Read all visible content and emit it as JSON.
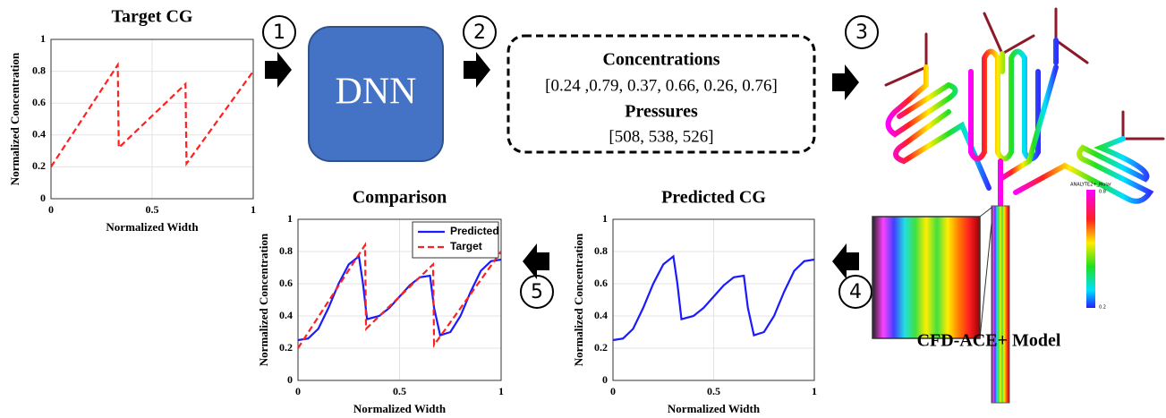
{
  "steps": [
    "1",
    "2",
    "3",
    "4",
    "5"
  ],
  "dnn": "DNN",
  "parameters": {
    "concentrations_title": "Concentrations",
    "concentrations": "[0.24 ,0.79, 0.37, 0.66, 0.26, 0.76]",
    "pressures_title": "Pressures",
    "pressures": "[508, 538, 526]"
  },
  "model_label": "CFD-ACE+ Model",
  "colorbar": {
    "title": "ANALYTE2+_Molar",
    "top": "0.8",
    "bottom": "0.2"
  },
  "chart_data": [
    {
      "type": "line",
      "title": "Target CG",
      "x_label": "Normalized Width",
      "y_label": "Normalized Concentration",
      "xlim": [
        0,
        1
      ],
      "xticks": [
        0,
        0.5,
        1
      ],
      "ylim": [
        0,
        1
      ],
      "yticks": [
        0,
        0.2,
        0.4,
        0.6,
        0.8,
        1
      ],
      "grid": true,
      "series": [
        {
          "color": "#ff2020",
          "dash": true,
          "x": [
            0,
            0.33,
            0.335,
            0.665,
            0.67,
            1
          ],
          "values": [
            0.2,
            0.84,
            0.32,
            0.72,
            0.22,
            0.8
          ]
        }
      ]
    },
    {
      "type": "line",
      "title": "Comparison",
      "x_label": "Normalized Width",
      "y_label": "Normalized Concentration",
      "xlim": [
        0,
        1
      ],
      "xticks": [
        0,
        0.5,
        1
      ],
      "ylim": [
        0,
        1
      ],
      "yticks": [
        0,
        0.2,
        0.4,
        0.6,
        0.8,
        1
      ],
      "grid": true,
      "legend": "upper-right",
      "series": [
        {
          "name": "Predicted",
          "color": "#1a1aff",
          "dash": false,
          "x": [
            0,
            0.05,
            0.1,
            0.15,
            0.2,
            0.25,
            0.3,
            0.32,
            0.34,
            0.4,
            0.45,
            0.5,
            0.55,
            0.6,
            0.65,
            0.67,
            0.7,
            0.75,
            0.8,
            0.85,
            0.9,
            0.95,
            1
          ],
          "values": [
            0.25,
            0.26,
            0.32,
            0.45,
            0.6,
            0.72,
            0.77,
            0.6,
            0.38,
            0.4,
            0.45,
            0.52,
            0.59,
            0.64,
            0.65,
            0.45,
            0.28,
            0.3,
            0.4,
            0.55,
            0.68,
            0.74,
            0.75
          ]
        },
        {
          "name": "Target",
          "color": "#ff2020",
          "dash": true,
          "x": [
            0,
            0.33,
            0.335,
            0.665,
            0.67,
            1
          ],
          "values": [
            0.2,
            0.84,
            0.32,
            0.72,
            0.22,
            0.8
          ]
        }
      ]
    },
    {
      "type": "line",
      "title": "Predicted CG",
      "x_label": "Normalized Width",
      "y_label": "Normalized Concentration",
      "xlim": [
        0,
        1
      ],
      "xticks": [
        0,
        0.5,
        1
      ],
      "ylim": [
        0,
        1
      ],
      "yticks": [
        0,
        0.2,
        0.4,
        0.6,
        0.8,
        1
      ],
      "grid": true,
      "series": [
        {
          "color": "#1a1aff",
          "dash": false,
          "x": [
            0,
            0.05,
            0.1,
            0.15,
            0.2,
            0.25,
            0.3,
            0.32,
            0.34,
            0.4,
            0.45,
            0.5,
            0.55,
            0.6,
            0.65,
            0.67,
            0.7,
            0.75,
            0.8,
            0.85,
            0.9,
            0.95,
            1
          ],
          "values": [
            0.25,
            0.26,
            0.32,
            0.45,
            0.6,
            0.72,
            0.77,
            0.6,
            0.38,
            0.4,
            0.45,
            0.52,
            0.59,
            0.64,
            0.65,
            0.45,
            0.28,
            0.3,
            0.4,
            0.55,
            0.68,
            0.74,
            0.75
          ]
        }
      ]
    }
  ]
}
